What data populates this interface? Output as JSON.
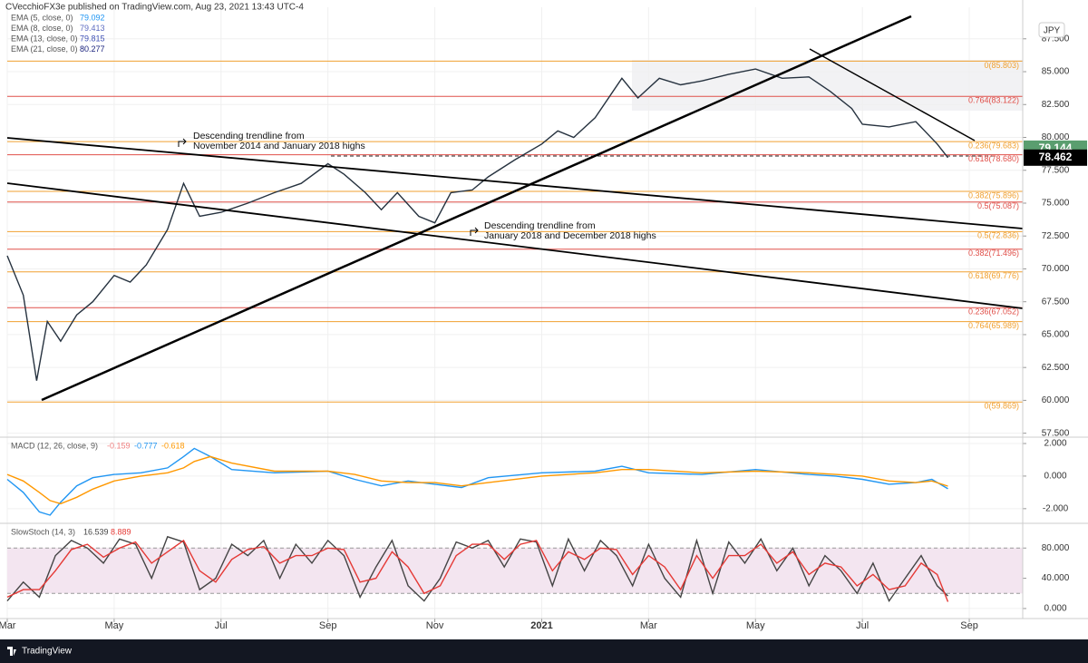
{
  "header": "CVecchioFX3e published on TradingView.com, Aug 23, 2021 13:43 UTC-4",
  "footer": "TradingView",
  "chart_data": [
    {
      "type": "line",
      "xlim": [
        0,
        19
      ],
      "ylim": [
        57.2,
        89.9
      ],
      "yticks": [
        {
          "value": 57.5,
          "label": "57.500"
        },
        {
          "value": 60,
          "label": "60.000"
        },
        {
          "value": 62.5,
          "label": "62.500"
        },
        {
          "value": 65,
          "label": "65.000"
        },
        {
          "value": 67.5,
          "label": "67.500"
        },
        {
          "value": 70,
          "label": "70.000"
        },
        {
          "value": 72.5,
          "label": "72.500"
        },
        {
          "value": 75,
          "label": "75.000"
        },
        {
          "value": 77.5,
          "label": "77.500"
        },
        {
          "value": 80,
          "label": "80.000"
        },
        {
          "value": 82.5,
          "label": "82.500"
        },
        {
          "value": 85,
          "label": "85.000"
        },
        {
          "value": 87.5,
          "label": "87.500"
        }
      ],
      "grid": true,
      "currency": "JPY",
      "x": [
        0,
        0.3,
        0.55,
        0.75,
        1.0,
        1.3,
        1.6,
        2.0,
        2.3,
        2.6,
        3.0,
        3.3,
        3.6,
        4.0,
        4.5,
        5.0,
        5.5,
        6.0,
        6.3,
        6.7,
        7.0,
        7.3,
        7.7,
        8.0,
        8.3,
        8.7,
        9.0,
        9.5,
        10,
        10.3,
        10.6,
        11.0,
        11.5,
        11.8,
        12.2,
        12.6,
        13,
        13.5,
        14,
        14.5,
        15,
        15.4,
        15.8,
        16,
        16.5,
        17,
        17.4,
        17.6
      ],
      "series": [
        {
          "color": "#26323f",
          "values": [
            71.0,
            68,
            61.5,
            66,
            64.5,
            66.5,
            67.5,
            69.5,
            69.0,
            70.3,
            73.0,
            76.5,
            74.0,
            74.3,
            75.0,
            75.8,
            76.5,
            78.0,
            77.2,
            75.8,
            74.5,
            75.8,
            74.0,
            73.5,
            75.8,
            76.0,
            77.0,
            78.3,
            79.5,
            80.5,
            80.0,
            81.5,
            84.5,
            83.0,
            84.5,
            84.0,
            84.3,
            84.8,
            85.2,
            84.5,
            84.6,
            83.5,
            82.2,
            81.0,
            80.8,
            81.2,
            79.5,
            78.462
          ]
        }
      ],
      "legend": [
        {
          "name": "EMA (5, close, 0)",
          "value": 79.092,
          "color": "#2196f3"
        },
        {
          "name": "EMA (8, close, 0)",
          "value": 79.413,
          "color": "#5c6bc0"
        },
        {
          "name": "EMA (13, close, 0)",
          "value": 79.815,
          "color": "#3f51b5"
        },
        {
          "name": "EMA (21, close, 0)",
          "value": 80.277,
          "color": "#1a237e"
        }
      ],
      "levels": [
        {
          "label": "0(85.803)",
          "value": 85.803,
          "color": "#f0a030"
        },
        {
          "label": "0.764(83.122)",
          "value": 83.122,
          "color": "#e0504a"
        },
        {
          "label": "0.236(79.683)",
          "value": 79.683,
          "color": "#f0a030"
        },
        {
          "label": "0.618(78.680)",
          "value": 78.68,
          "color": "#e0504a"
        },
        {
          "label": "0.382(75.896)",
          "value": 75.896,
          "color": "#f0a030"
        },
        {
          "label": "0.5(75.087)",
          "value": 75.087,
          "color": "#e0504a"
        },
        {
          "label": "0.5(72.836)",
          "value": 72.836,
          "color": "#f0a030"
        },
        {
          "label": "0.382(71.496)",
          "value": 71.496,
          "color": "#e0504a"
        },
        {
          "label": "0.618(69.776)",
          "value": 69.776,
          "color": "#f0a030"
        },
        {
          "label": "0.236(67.052)",
          "value": 67.052,
          "color": "#e0504a"
        },
        {
          "label": "0.764(65.989)",
          "value": 65.989,
          "color": "#f0a030"
        },
        {
          "label": "0(59.869)",
          "value": 59.869,
          "color": "#f0a030"
        }
      ],
      "price_labels": [
        {
          "value": 79.144,
          "color": "#5a9e6f"
        },
        {
          "value": 78.462,
          "color": "#000000"
        }
      ],
      "annotations": [
        [
          "Descending trendline from",
          "November 2014 and January 2018 highs"
        ],
        [
          "Descending trendline from",
          "January 2018 and December 2018 highs"
        ]
      ]
    },
    {
      "type": "line",
      "title": "MACD (12, 26, close, 9)",
      "xlim": [
        0,
        19
      ],
      "ylim": [
        -2.9,
        2.39
      ],
      "yticks": [
        {
          "value": 2,
          "label": "2.000"
        },
        {
          "value": 0,
          "label": "0.000"
        },
        {
          "value": -2,
          "label": "-2.000"
        }
      ],
      "grid": true,
      "x": [
        0,
        0.3,
        0.6,
        0.8,
        1.0,
        1.3,
        1.6,
        2.0,
        2.5,
        3.0,
        3.3,
        3.5,
        3.8,
        4.2,
        5.0,
        6.0,
        6.5,
        7.0,
        7.5,
        8.0,
        8.5,
        9.0,
        10.0,
        11.0,
        11.5,
        12.0,
        13.0,
        14.0,
        15.0,
        15.5,
        16.0,
        16.5,
        17.0,
        17.3,
        17.6
      ],
      "series": [
        {
          "color": "#2196f3",
          "values": [
            -0.2,
            -1.0,
            -2.2,
            -2.4,
            -1.6,
            -0.6,
            -0.1,
            0.1,
            0.2,
            0.5,
            1.2,
            1.7,
            1.2,
            0.4,
            0.2,
            0.3,
            -0.2,
            -0.6,
            -0.3,
            -0.5,
            -0.7,
            -0.1,
            0.2,
            0.3,
            0.6,
            0.2,
            0.1,
            0.4,
            0.1,
            0.0,
            -0.2,
            -0.5,
            -0.4,
            -0.2,
            -0.777
          ]
        },
        {
          "color": "#ff9800",
          "values": [
            0.1,
            -0.3,
            -1.0,
            -1.5,
            -1.7,
            -1.3,
            -0.8,
            -0.3,
            0.0,
            0.2,
            0.5,
            0.9,
            1.2,
            0.8,
            0.3,
            0.3,
            0.1,
            -0.3,
            -0.4,
            -0.4,
            -0.6,
            -0.4,
            0.0,
            0.2,
            0.4,
            0.4,
            0.2,
            0.3,
            0.2,
            0.1,
            0.0,
            -0.3,
            -0.4,
            -0.3,
            -0.618
          ]
        }
      ],
      "legend": [
        {
          "value": -0.159,
          "color": "#f08080"
        },
        {
          "value": -0.777,
          "color": "#2196f3"
        },
        {
          "value": -0.618,
          "color": "#ff9800"
        }
      ]
    },
    {
      "type": "line",
      "title": "SlowStoch (14, 3)",
      "xlim": [
        0,
        19
      ],
      "ylim": [
        -13.3,
        112.7
      ],
      "yticks": [
        {
          "value": 80,
          "label": "80.000"
        },
        {
          "value": 40,
          "label": "40.000"
        },
        {
          "value": 0,
          "label": "0.000"
        }
      ],
      "xticks": [
        {
          "value": 0,
          "label": "Mar"
        },
        {
          "value": 2,
          "label": "May"
        },
        {
          "value": 4,
          "label": "Jul"
        },
        {
          "value": 6,
          "label": "Sep"
        },
        {
          "value": 8,
          "label": "Nov"
        },
        {
          "value": 10,
          "label": "2021"
        },
        {
          "value": 12,
          "label": "Mar"
        },
        {
          "value": 14,
          "label": "May"
        },
        {
          "value": 16,
          "label": "Jul"
        },
        {
          "value": 18,
          "label": "Sep"
        }
      ],
      "grid": true,
      "bands": [
        20,
        80
      ],
      "x": [
        0,
        0.3,
        0.6,
        0.9,
        1.2,
        1.5,
        1.8,
        2.1,
        2.4,
        2.7,
        3.0,
        3.3,
        3.6,
        3.9,
        4.2,
        4.5,
        4.8,
        5.1,
        5.4,
        5.7,
        6.0,
        6.3,
        6.6,
        6.9,
        7.2,
        7.5,
        7.8,
        8.1,
        8.4,
        8.7,
        9.0,
        9.3,
        9.6,
        9.9,
        10.2,
        10.5,
        10.8,
        11.1,
        11.4,
        11.7,
        12.0,
        12.3,
        12.6,
        12.9,
        13.2,
        13.5,
        13.8,
        14.1,
        14.4,
        14.7,
        15.0,
        15.3,
        15.6,
        15.9,
        16.2,
        16.5,
        16.8,
        17.1,
        17.4,
        17.6
      ],
      "series": [
        {
          "color": "#444444",
          "values": [
            10,
            35,
            15,
            70,
            90,
            80,
            60,
            92,
            85,
            40,
            95,
            88,
            25,
            40,
            85,
            70,
            90,
            40,
            85,
            60,
            90,
            70,
            15,
            55,
            90,
            30,
            10,
            40,
            88,
            80,
            90,
            55,
            92,
            88,
            30,
            92,
            50,
            90,
            70,
            30,
            85,
            40,
            15,
            90,
            20,
            88,
            60,
            92,
            50,
            80,
            30,
            70,
            50,
            20,
            60,
            10,
            40,
            70,
            30,
            16.539
          ]
        },
        {
          "color": "#e53935",
          "values": [
            15,
            25,
            25,
            50,
            78,
            85,
            68,
            80,
            88,
            60,
            75,
            90,
            50,
            35,
            65,
            78,
            82,
            60,
            70,
            70,
            80,
            78,
            35,
            40,
            75,
            55,
            20,
            30,
            70,
            85,
            85,
            65,
            85,
            90,
            50,
            75,
            65,
            80,
            78,
            45,
            70,
            55,
            25,
            70,
            40,
            70,
            70,
            85,
            60,
            75,
            45,
            60,
            55,
            30,
            45,
            25,
            30,
            60,
            45,
            8.889
          ]
        }
      ],
      "legend": [
        {
          "value": 16.539,
          "color": "#444444"
        },
        {
          "value": 8.889,
          "color": "#e53935"
        }
      ]
    }
  ]
}
